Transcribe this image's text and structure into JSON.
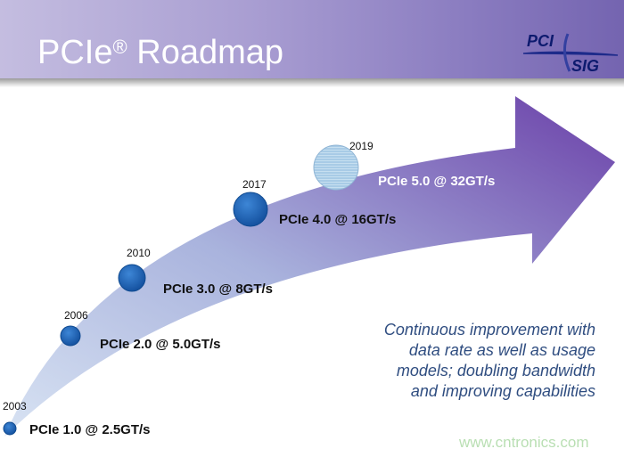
{
  "header": {
    "title": "PCIe",
    "title_sup": "®",
    "title_rest": " Roadmap",
    "logo_text": [
      "PCI",
      "SIG"
    ]
  },
  "milestones": [
    {
      "year": "2003",
      "label": "PCIe 1.0 @ 2.5GT/s"
    },
    {
      "year": "2006",
      "label": "PCIe 2.0 @ 5.0GT/s"
    },
    {
      "year": "2010",
      "label": "PCIe 3.0 @ 8GT/s"
    },
    {
      "year": "2017",
      "label": "PCIe 4.0 @ 16GT/s"
    },
    {
      "year": "2019",
      "label": "PCIe 5.0 @ 32GT/s"
    }
  ],
  "note": [
    "Continuous improvement with",
    "data rate as well as usage",
    "models; doubling bandwidth",
    "and improving capabilities"
  ],
  "watermark": "www.cntronics.com",
  "colors": {
    "arrow_start": "#c9d6ee",
    "arrow_end": "#6a3fa8",
    "dot": "#1f64b8",
    "future_dot": "#a8cbe6",
    "note": "#2f4d80"
  }
}
